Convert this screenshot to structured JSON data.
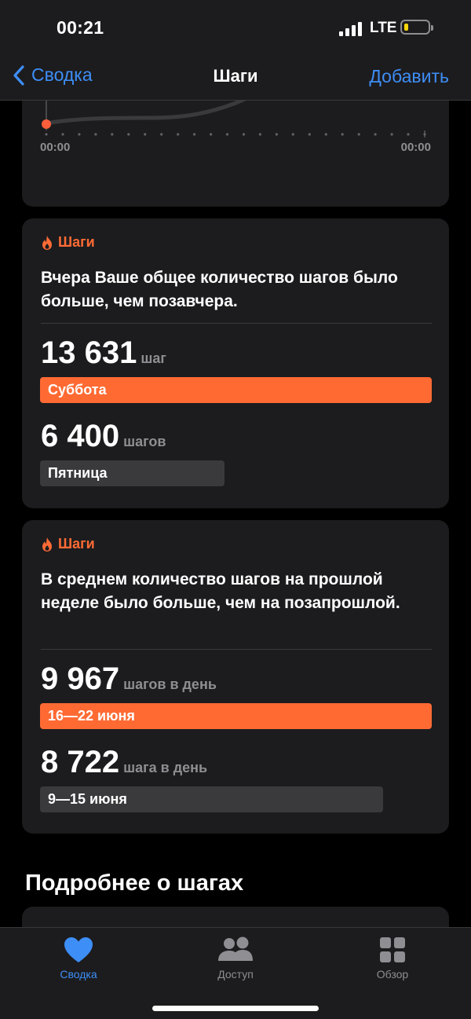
{
  "status_bar": {
    "time": "00:21",
    "network": "LTE",
    "battery_level": 0.15,
    "battery_color": "#ffd60a"
  },
  "nav": {
    "back_label": "Сводка",
    "title": "Шаги",
    "action_label": "Добавить"
  },
  "chart": {
    "x_start": "00:00",
    "x_end": "00:00",
    "accent_color": "#ff5e3a"
  },
  "cards": [
    {
      "tag_label": "Шаги",
      "text": "Вчера Ваше общее количество шагов было больше, чем позавчера.",
      "primary": {
        "value": "13 631",
        "unit": "шаг",
        "label": "Суббота",
        "fraction": 1.0
      },
      "secondary": {
        "value": "6 400",
        "unit": "шагов",
        "label": "Пятница",
        "fraction": 0.47
      }
    },
    {
      "tag_label": "Шаги",
      "text": "В среднем количество шагов на прошлой неделе было больше, чем на позапрошлой.",
      "primary": {
        "value": "9 967",
        "unit": "шагов в день",
        "label": "16—22 июня",
        "fraction": 1.0
      },
      "secondary": {
        "value": "8 722",
        "unit": "шага в день",
        "label": "9—15 июня",
        "fraction": 0.875
      }
    }
  ],
  "section": {
    "title": "Подробнее о шагах"
  },
  "tabs": [
    {
      "label": "Сводка",
      "icon": "heart-icon",
      "active": true
    },
    {
      "label": "Доступ",
      "icon": "people-icon",
      "active": false
    },
    {
      "label": "Обзор",
      "icon": "grid-icon",
      "active": false
    }
  ],
  "colors": {
    "accent": "#ff6a33",
    "link": "#3e8ef7",
    "tab_active": "#3e8ef7",
    "tab_inactive": "#8e8e93"
  }
}
